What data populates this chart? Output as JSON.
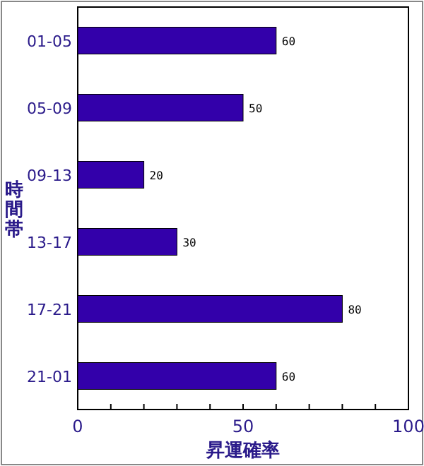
{
  "chart_data": {
    "type": "bar",
    "orientation": "horizontal",
    "xlabel": "昇運確率",
    "ylabel": "時間帯",
    "categories": [
      "01-05",
      "05-09",
      "09-13",
      "13-17",
      "17-21",
      "21-01"
    ],
    "values": [
      60,
      50,
      20,
      30,
      80,
      60
    ],
    "color": "#3300aa",
    "data_labels": true,
    "xlim": [
      0,
      100
    ],
    "xticks": [
      0,
      {
        "value": 10,
        "label": null
      },
      {
        "value": 20,
        "label": null
      },
      {
        "value": 30,
        "label": null
      },
      {
        "value": 40,
        "label": null
      },
      50,
      {
        "value": 60,
        "label": null
      },
      {
        "value": 70,
        "label": null
      },
      {
        "value": 80,
        "label": null
      },
      {
        "value": 90,
        "label": null
      },
      100
    ],
    "grid": false
  }
}
